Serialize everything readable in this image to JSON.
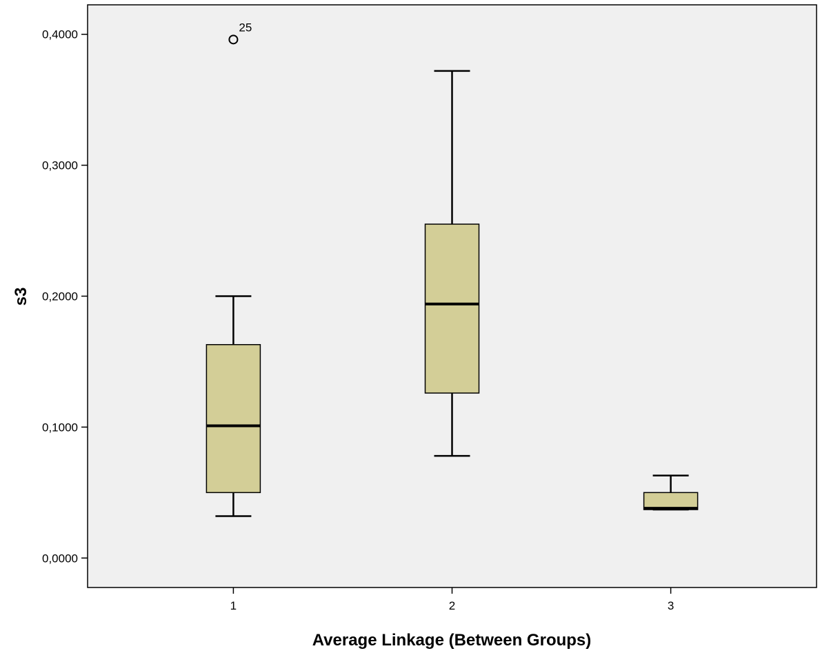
{
  "chart_data": {
    "type": "boxplot",
    "title": "",
    "xlabel": "Average Linkage (Between Groups)",
    "ylabel": "s3",
    "ylim": [
      -0.0225,
      0.4225
    ],
    "y_ticks": [
      0.0,
      0.1,
      0.2,
      0.3,
      0.4
    ],
    "y_tick_labels": [
      "0,0000",
      "0,1000",
      "0,2000",
      "0,3000",
      "0,4000"
    ],
    "categories": [
      "1",
      "2",
      "3"
    ],
    "boxes": [
      {
        "category": "1",
        "whisker_low": 0.032,
        "q1": 0.05,
        "median": 0.101,
        "q3": 0.163,
        "whisker_high": 0.2
      },
      {
        "category": "2",
        "whisker_low": 0.078,
        "q1": 0.126,
        "median": 0.194,
        "q3": 0.255,
        "whisker_high": 0.372
      },
      {
        "category": "3",
        "whisker_low": 0.037,
        "q1": 0.037,
        "median": 0.038,
        "q3": 0.05,
        "whisker_high": 0.063
      }
    ],
    "outliers": [
      {
        "category": "1",
        "value": 0.396,
        "label": "25"
      }
    ],
    "grid": false,
    "legend": "none",
    "colors": {
      "plot_background": "#f0f0f0",
      "box_fill": "#d3ce97",
      "stroke": "#000000"
    }
  }
}
